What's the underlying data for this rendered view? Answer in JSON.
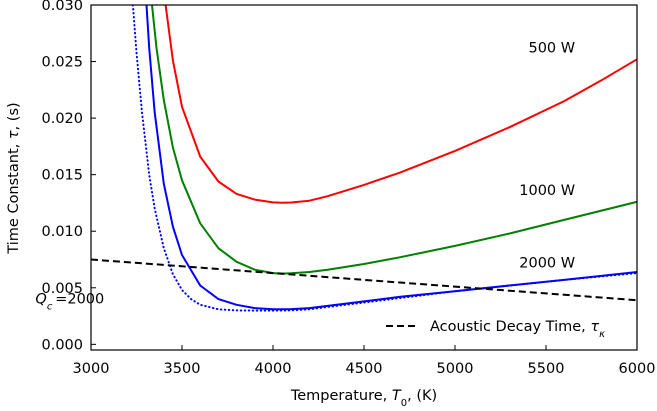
{
  "chart_data": {
    "type": "line",
    "title": "",
    "xlabel": "Temperature, T₀, (K)",
    "ylabel": "Time Constant, τ, (s)",
    "xlim": [
      3000,
      6000
    ],
    "ylim": [
      -0.0005,
      0.03
    ],
    "xticks": [
      3000,
      3500,
      4000,
      4500,
      5000,
      5500,
      6000
    ],
    "yticks": [
      0.0,
      0.005,
      0.01,
      0.015,
      0.02,
      0.025,
      0.03
    ],
    "xtick_labels": [
      "3000",
      "3500",
      "4000",
      "4500",
      "5000",
      "5500",
      "6000"
    ],
    "ytick_labels": [
      "0.000",
      "0.005",
      "0.010",
      "0.015",
      "0.020",
      "0.025",
      "0.030"
    ],
    "grid": false,
    "legend": {
      "placement": "lower-right",
      "entries": [
        {
          "label": "Acoustic Decay Time, τκ",
          "series": "Acoustic Decay Time"
        }
      ]
    },
    "series": [
      {
        "name": "500 W",
        "color": "#ff0000",
        "style": "solid",
        "x": [
          3410,
          3450,
          3500,
          3600,
          3700,
          3800,
          3900,
          4000,
          4050,
          4100,
          4200,
          4300,
          4500,
          4700,
          5000,
          5300,
          5600,
          5800,
          6000
        ],
        "y": [
          0.03,
          0.0251,
          0.021,
          0.0166,
          0.0144,
          0.0133,
          0.0128,
          0.01255,
          0.01252,
          0.01254,
          0.0127,
          0.0131,
          0.0141,
          0.0152,
          0.0171,
          0.0192,
          0.0215,
          0.0233,
          0.0252
        ]
      },
      {
        "name": "1000 W",
        "color": "#008000",
        "style": "solid",
        "x": [
          3335,
          3360,
          3400,
          3450,
          3500,
          3600,
          3700,
          3800,
          3900,
          4000,
          4050,
          4100,
          4200,
          4300,
          4500,
          4700,
          5000,
          5300,
          5600,
          6000
        ],
        "y": [
          0.03,
          0.0262,
          0.0216,
          0.0174,
          0.0145,
          0.0107,
          0.0085,
          0.0073,
          0.0066,
          0.0063,
          0.00625,
          0.00628,
          0.0064,
          0.0066,
          0.0071,
          0.0077,
          0.0087,
          0.0098,
          0.011,
          0.0126
        ]
      },
      {
        "name": "2000 W",
        "color": "#0000ff",
        "style": "solid",
        "x": [
          3305,
          3320,
          3350,
          3400,
          3450,
          3500,
          3600,
          3700,
          3800,
          3900,
          4000,
          4100,
          4200,
          4300,
          4500,
          4700,
          5000,
          5300,
          5600,
          6000
        ],
        "y": [
          0.03,
          0.0262,
          0.0205,
          0.0142,
          0.0104,
          0.0079,
          0.0052,
          0.004,
          0.0035,
          0.0032,
          0.0031,
          0.00312,
          0.0032,
          0.0034,
          0.0038,
          0.0042,
          0.0047,
          0.0052,
          0.0057,
          0.0064
        ]
      },
      {
        "name": "Qc = 2000",
        "color": "#0000ff",
        "style": "dotted",
        "x": [
          3230,
          3250,
          3280,
          3320,
          3350,
          3400,
          3450,
          3500,
          3550,
          3600,
          3700,
          3800,
          3900,
          4000,
          4100,
          4200,
          4300,
          4500,
          4700,
          5000,
          5300,
          5600,
          6000
        ],
        "y": [
          0.03,
          0.0258,
          0.0205,
          0.015,
          0.012,
          0.0085,
          0.0062,
          0.0048,
          0.004,
          0.0035,
          0.0031,
          0.003,
          0.00298,
          0.00298,
          0.003,
          0.0031,
          0.0033,
          0.0037,
          0.0041,
          0.0047,
          0.0052,
          0.0057,
          0.0063
        ]
      },
      {
        "name": "Acoustic Decay Time",
        "color": "#000000",
        "style": "dashed",
        "x": [
          3000,
          6000
        ],
        "y": [
          0.0075,
          0.0039
        ]
      }
    ],
    "annotations": [
      {
        "text": "500 W",
        "x": 5660,
        "y": 0.0258
      },
      {
        "text": "1000 W",
        "x": 5660,
        "y": 0.0132
      },
      {
        "text": "2000 W",
        "x": 5660,
        "y": 0.0068
      },
      {
        "text": "Qc = 2000",
        "x": 3200,
        "y": 0.0036
      }
    ]
  }
}
